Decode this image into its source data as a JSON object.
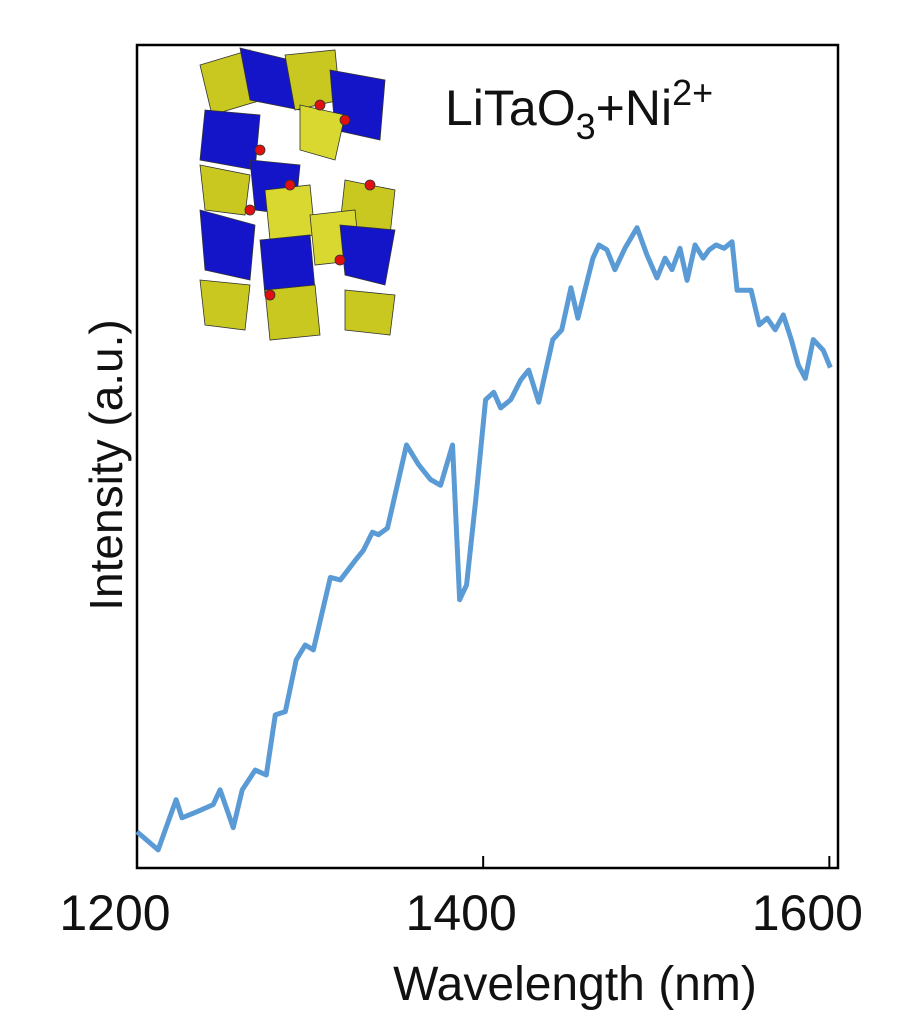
{
  "chart_data": {
    "type": "line",
    "annotation": [
      "LiTaO",
      "3",
      "+Ni",
      "2+"
    ],
    "x_label": "Wavelength (nm)",
    "y_label": "Intensity (a.u.)",
    "xlim": [
      1200,
      1605
    ],
    "xticks": [
      1200,
      1400,
      1600
    ],
    "ylim": [
      0,
      100
    ],
    "series": [
      {
        "color": "#5b9bd5",
        "x": [
          1200,
          1212.2,
          1222.6,
          1226.0,
          1234.2,
          1244.0,
          1248.0,
          1255.6,
          1260.8,
          1268.3,
          1274.7,
          1279.9,
          1285.7,
          1292.0,
          1297.2,
          1301.9,
          1311.7,
          1317.5,
          1326.2,
          1330.8,
          1336.0,
          1339.5,
          1344.7,
          1355.7,
          1362.7,
          1369.6,
          1375.4,
          1382.3,
          1386.4,
          1390.4,
          1395.7,
          1401.4,
          1406.1,
          1410.1,
          1415.9,
          1421.7,
          1426.3,
          1432.1,
          1440.2,
          1445.4,
          1450.7,
          1454.7,
          1463.4,
          1466.9,
          1471.5,
          1476.1,
          1481.9,
          1488.9,
          1494.6,
          1500.4,
          1505.1,
          1509.1,
          1513.7,
          1517.8,
          1522.4,
          1527.1,
          1530.5,
          1534.6,
          1539.2,
          1543.8,
          1546.7,
          1554.8,
          1559.5,
          1564.1,
          1568.7,
          1573.4,
          1578.0,
          1582.1,
          1586.1,
          1590.7,
          1596.5,
          1600.6
        ],
        "values": [
          4.4,
          2.2,
          8.3,
          6.1,
          6.8,
          7.7,
          9.5,
          4.9,
          9.5,
          11.9,
          11.3,
          18.6,
          19.0,
          25.3,
          27.1,
          26.5,
          35.3,
          35.0,
          37.4,
          38.6,
          40.8,
          40.5,
          41.3,
          51.4,
          49.0,
          47.2,
          46.5,
          51.4,
          32.6,
          34.4,
          44.7,
          56.9,
          57.8,
          55.9,
          56.9,
          59.3,
          60.5,
          56.6,
          64.2,
          65.4,
          70.5,
          66.8,
          74.1,
          75.7,
          75.1,
          72.7,
          75.3,
          77.8,
          74.5,
          71.7,
          74.1,
          72.7,
          75.3,
          71.4,
          75.7,
          74.1,
          75.1,
          75.7,
          75.3,
          76.1,
          70.2,
          70.2,
          66.0,
          66.8,
          65.4,
          67.2,
          64.2,
          61.1,
          59.5,
          64.2,
          62.9,
          60.8
        ]
      }
    ]
  }
}
